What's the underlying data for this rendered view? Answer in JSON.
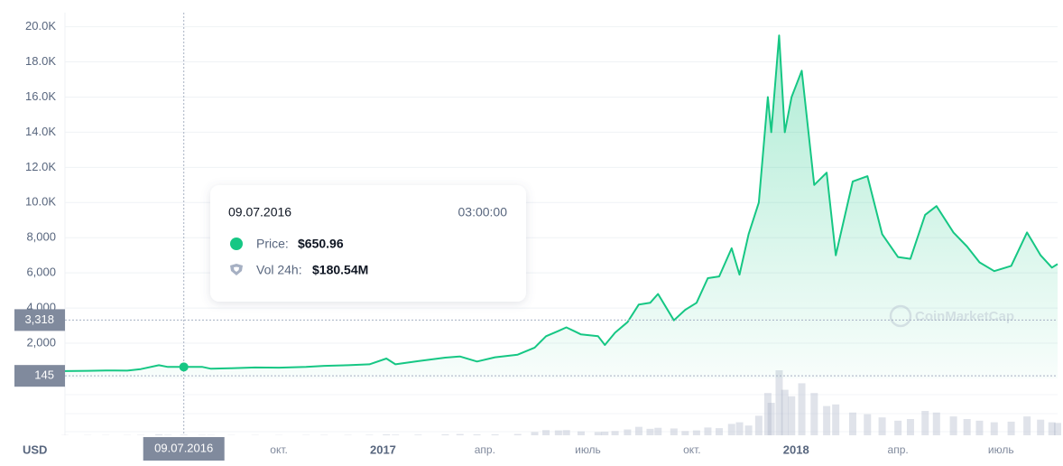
{
  "chart_data": {
    "type": "area",
    "currency": "USD",
    "watermark": "CoinMarketCap",
    "color": "#16c784",
    "grid": true,
    "xlim": [
      "2016-03-26",
      "2018-08-20"
    ],
    "ylim": [
      0,
      20800
    ],
    "yticks": [
      {
        "value": 2000,
        "label": "2,000"
      },
      {
        "value": 4000,
        "label": "4,000"
      },
      {
        "value": 6000,
        "label": "6,000"
      },
      {
        "value": 8000,
        "label": "8,000"
      },
      {
        "value": 10000,
        "label": "10.0K"
      },
      {
        "value": 12000,
        "label": "12.0K"
      },
      {
        "value": 14000,
        "label": "14.0K"
      },
      {
        "value": 16000,
        "label": "16.0K"
      },
      {
        "value": 18000,
        "label": "18.0K"
      },
      {
        "value": 20000,
        "label": "20.0K"
      }
    ],
    "xticks": [
      {
        "value": "2016-10-01",
        "label": "окт."
      },
      {
        "value": "2017-01-01",
        "label": "2017"
      },
      {
        "value": "2017-04-01",
        "label": "апр."
      },
      {
        "value": "2017-07-01",
        "label": "июль"
      },
      {
        "value": "2017-10-01",
        "label": "окт."
      },
      {
        "value": "2018-01-01",
        "label": "2018"
      },
      {
        "value": "2018-04-01",
        "label": "апр."
      },
      {
        "value": "2018-07-01",
        "label": "июль"
      }
    ],
    "crosshair": {
      "x": "2016-07-09",
      "label": "09.07.2016",
      "y": {
        "value": 3318,
        "label": "3,318"
      }
    },
    "min_marker": 145,
    "tooltip": {
      "date": "09.07.2016",
      "time": "03:00:00",
      "price_label": "Price:",
      "price": {
        "value": 650.96,
        "label": "$650.96"
      },
      "volume_label": "Vol 24h:",
      "volume": {
        "value": 180540000,
        "label": "$180.54M"
      }
    },
    "x": [
      "2016-03-26",
      "2016-04-15",
      "2016-05-01",
      "2016-05-20",
      "2016-06-01",
      "2016-06-17",
      "2016-06-25",
      "2016-07-09",
      "2016-07-25",
      "2016-08-02",
      "2016-08-20",
      "2016-09-10",
      "2016-10-01",
      "2016-10-25",
      "2016-11-10",
      "2016-12-01",
      "2016-12-20",
      "2017-01-04",
      "2017-01-12",
      "2017-02-01",
      "2017-02-25",
      "2017-03-10",
      "2017-03-25",
      "2017-04-10",
      "2017-04-30",
      "2017-05-15",
      "2017-05-25",
      "2017-06-05",
      "2017-06-12",
      "2017-06-25",
      "2017-07-10",
      "2017-07-16",
      "2017-07-25",
      "2017-08-05",
      "2017-08-15",
      "2017-08-25",
      "2017-09-01",
      "2017-09-15",
      "2017-09-25",
      "2017-10-05",
      "2017-10-15",
      "2017-10-25",
      "2017-11-05",
      "2017-11-12",
      "2017-11-20",
      "2017-11-29",
      "2017-12-07",
      "2017-12-10",
      "2017-12-17",
      "2017-12-22",
      "2017-12-28",
      "2018-01-06",
      "2018-01-17",
      "2018-01-28",
      "2018-02-05",
      "2018-02-20",
      "2018-03-05",
      "2018-03-18",
      "2018-04-01",
      "2018-04-12",
      "2018-04-25",
      "2018-05-05",
      "2018-05-20",
      "2018-06-01",
      "2018-06-12",
      "2018-06-25",
      "2018-07-10",
      "2018-07-24",
      "2018-08-05",
      "2018-08-15",
      "2018-08-20"
    ],
    "series": [
      {
        "name": "Price",
        "values": [
          415,
          430,
          450,
          440,
          530,
          750,
          650,
          650.96,
          655,
          550,
          580,
          620,
          610,
          650,
          715,
          750,
          800,
          1130,
          800,
          980,
          1180,
          1250,
          960,
          1200,
          1350,
          1750,
          2400,
          2700,
          2900,
          2500,
          2400,
          1900,
          2600,
          3200,
          4200,
          4300,
          4800,
          3300,
          3900,
          4300,
          5700,
          5800,
          7400,
          5900,
          8200,
          10000,
          16000,
          14000,
          19500,
          14000,
          16000,
          17500,
          11000,
          11700,
          7000,
          11200,
          11500,
          8200,
          6900,
          6800,
          9300,
          9800,
          8300,
          7500,
          6600,
          6100,
          6400,
          8300,
          7000,
          6300,
          6500
        ]
      },
      {
        "name": "Vol 24h",
        "values": [
          0.07,
          0.08,
          0.08,
          0.08,
          0.12,
          0.3,
          0.15,
          0.18,
          0.12,
          0.1,
          0.08,
          0.09,
          0.08,
          0.1,
          0.12,
          0.12,
          0.15,
          0.3,
          0.2,
          0.2,
          0.3,
          0.4,
          0.3,
          0.3,
          0.4,
          1.0,
          1.6,
          1.5,
          1.6,
          1.2,
          1.0,
          1.1,
          1.3,
          1.8,
          2.6,
          2.0,
          2.3,
          2.1,
          1.3,
          1.5,
          2.4,
          2.2,
          3.5,
          4.0,
          3.0,
          6.0,
          13.0,
          10.0,
          20.0,
          14.0,
          12.0,
          16.0,
          13.0,
          9.0,
          9.5,
          7.0,
          6.5,
          5.5,
          4.5,
          5.0,
          7.5,
          7.0,
          5.8,
          5.0,
          4.5,
          4.0,
          4.2,
          5.8,
          4.8,
          4.0,
          3.8
        ]
      }
    ]
  }
}
